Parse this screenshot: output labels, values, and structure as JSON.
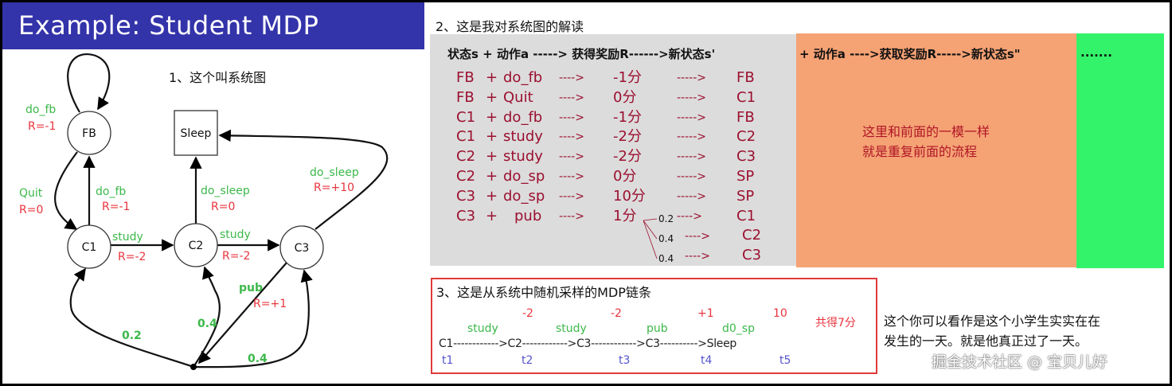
{
  "slide_title": "Example: Student MDP",
  "diagram": {
    "caption": "1、这个叫系统图",
    "nodes": {
      "fb": "FB",
      "sleep": "Sleep",
      "c1": "C1",
      "c2": "C2",
      "c3": "C3"
    },
    "edges": {
      "fb_loop_action": "do_fb",
      "fb_loop_reward": "R=-1",
      "quit_action": "Quit",
      "quit_reward": "R=0",
      "c1_fb_action": "do_fb",
      "c1_fb_reward": "R=-1",
      "c2_sleep_action": "do_sleep",
      "c2_sleep_reward": "R=0",
      "c3_sleep_action": "do_sleep",
      "c3_sleep_reward": "R=+10",
      "c1_c2_action": "study",
      "c1_c2_reward": "R=-2",
      "c2_c3_action": "study",
      "c2_c3_reward": "R=-2",
      "pub_action": "pub",
      "pub_reward": "R=+1",
      "p_c1": "0.2",
      "p_c2": "0.4",
      "p_c3": "0.4"
    },
    "colors": {
      "action": "#3cb84a",
      "reward": "#e8343c",
      "title_bar": "#3333aa"
    }
  },
  "interpretation": {
    "title": "2、这是我对系统图的解读",
    "header_left": "状态s + 动作a  -----> 获得奖励R------>新状态s' ",
    "header_mid": "+ 动作a  ---->获取奖励R----->新状态s\"",
    "header_right": ".......",
    "rows": [
      {
        "s": "FB",
        "plus": "+",
        "a": "do_fb",
        "arrow1": "---->",
        "r": "-1分",
        "arrow2": "----->",
        "s2": "FB"
      },
      {
        "s": "FB",
        "plus": "+",
        "a": "Quit",
        "arrow1": "---->",
        "r": "0分",
        "arrow2": "----->",
        "s2": "C1"
      },
      {
        "s": "C1",
        "plus": "+",
        "a": "do_fb",
        "arrow1": "---->",
        "r": "-1分",
        "arrow2": "----->",
        "s2": "FB"
      },
      {
        "s": "C1",
        "plus": "+",
        "a": "study",
        "arrow1": "---->",
        "r": "-2分",
        "arrow2": "----->",
        "s2": "C2"
      },
      {
        "s": "C2",
        "plus": "+",
        "a": "study",
        "arrow1": "---->",
        "r": "-2分",
        "arrow2": "----->",
        "s2": "C3"
      },
      {
        "s": "C2",
        "plus": "+",
        "a": "do_sp",
        "arrow1": "---->",
        "r": "0分",
        "arrow2": "----->",
        "s2": "SP"
      },
      {
        "s": "C3",
        "plus": "+",
        "a": "do_sp",
        "arrow1": "---->",
        "r": "10分",
        "arrow2": "----->",
        "s2": "SP"
      },
      {
        "s": "C3",
        "plus": "+",
        "a": "pub",
        "arrow1": "---->",
        "r": "1分",
        "arrow2": "---->",
        "s2": "C1"
      }
    ],
    "branches": [
      {
        "p": "0.4",
        "arrow": "---->",
        "s2": "C2"
      },
      {
        "p": "0.4",
        "arrow": "---->",
        "s2": "C3"
      }
    ],
    "branch_first_p": "0.2",
    "repeat_note_1": "这里和前面的一模一样",
    "repeat_note_2": "就是重复前面的流程",
    "colors": {
      "grey": "#dcdcdc",
      "orange": "#f5a275",
      "green": "#33f36a",
      "row_text": "#9b1030"
    }
  },
  "sample_chain": {
    "title": "3、这是从系统中随机采样的MDP链条",
    "chain_text": "C1------------>C2------------>C3------------>C3---------->Sleep",
    "actions": [
      "study",
      "study",
      "pub",
      "d0_sp"
    ],
    "rewards": [
      "-2",
      "-2",
      "+1",
      "10"
    ],
    "total": "共得7分",
    "times": [
      "t1",
      "t2",
      "t3",
      "t4",
      "t5"
    ]
  },
  "side_note_1": "这个你可以看作是这个小学生实实在在",
  "side_note_2": "发生的一天。就是他真正过了一天。",
  "watermark": "掘金技术社区 @ 宝贝儿好"
}
